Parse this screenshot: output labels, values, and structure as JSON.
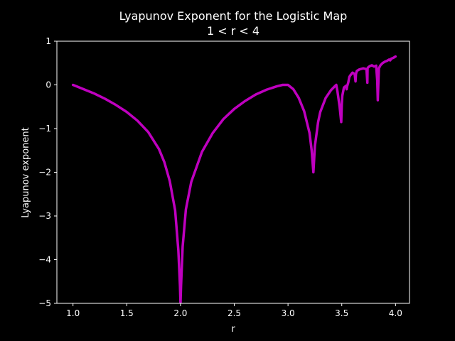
{
  "chart_data": {
    "type": "line",
    "title": "Lyapunov Exponent for the Logistic Map",
    "subtitle": "1 < r < 4",
    "xlabel": "r",
    "ylabel": "Lyapunov exponent",
    "xlim": [
      0.85,
      4.13
    ],
    "ylim": [
      -5,
      1
    ],
    "grid": false,
    "x_ticks": [
      "1.0",
      "1.5",
      "2.0",
      "2.5",
      "3.0",
      "3.5",
      "4.0"
    ],
    "y_ticks": [
      "1",
      "0",
      "−1",
      "−2",
      "−3",
      "−4",
      "−5"
    ],
    "series": [
      {
        "color": "#bf00bf",
        "x": [
          1.0,
          1.1,
          1.2,
          1.3,
          1.4,
          1.5,
          1.6,
          1.7,
          1.8,
          1.85,
          1.9,
          1.95,
          1.98,
          1.995,
          2.0,
          2.005,
          2.02,
          2.05,
          2.1,
          2.2,
          2.3,
          2.4,
          2.5,
          2.6,
          2.7,
          2.8,
          2.9,
          2.95,
          3.0,
          3.05,
          3.1,
          3.15,
          3.2,
          3.22,
          3.236,
          3.25,
          3.28,
          3.3,
          3.35,
          3.4,
          3.44,
          3.449,
          3.46,
          3.48,
          3.495,
          3.5,
          3.505,
          3.52,
          3.54,
          3.545,
          3.55,
          3.56,
          3.57,
          3.58,
          3.6,
          3.62,
          3.628,
          3.632,
          3.64,
          3.66,
          3.7,
          3.73,
          3.738,
          3.74,
          3.745,
          3.76,
          3.78,
          3.8,
          3.82,
          3.83,
          3.835,
          3.84,
          3.845,
          3.86,
          3.88,
          3.9,
          3.92,
          3.94,
          3.95,
          3.96,
          3.98,
          4.0
        ],
        "y": [
          0.0,
          -0.1,
          -0.2,
          -0.32,
          -0.46,
          -0.62,
          -0.82,
          -1.08,
          -1.47,
          -1.77,
          -2.2,
          -2.87,
          -3.79,
          -4.6,
          -5.0,
          -4.6,
          -3.7,
          -2.85,
          -2.22,
          -1.53,
          -1.1,
          -0.78,
          -0.55,
          -0.37,
          -0.22,
          -0.11,
          -0.03,
          -0.0,
          0.0,
          -0.1,
          -0.3,
          -0.6,
          -1.1,
          -1.5,
          -2.0,
          -1.4,
          -0.85,
          -0.62,
          -0.3,
          -0.12,
          -0.02,
          0.0,
          -0.15,
          -0.5,
          -0.85,
          -0.45,
          -0.25,
          -0.06,
          -0.02,
          -0.1,
          -0.03,
          0.05,
          0.18,
          0.22,
          0.28,
          0.25,
          0.08,
          0.25,
          0.32,
          0.35,
          0.38,
          0.36,
          0.05,
          0.38,
          0.4,
          0.43,
          0.45,
          0.42,
          0.44,
          0.1,
          -0.35,
          0.02,
          0.38,
          0.45,
          0.5,
          0.53,
          0.55,
          0.58,
          0.56,
          0.6,
          0.62,
          0.65
        ]
      }
    ]
  }
}
